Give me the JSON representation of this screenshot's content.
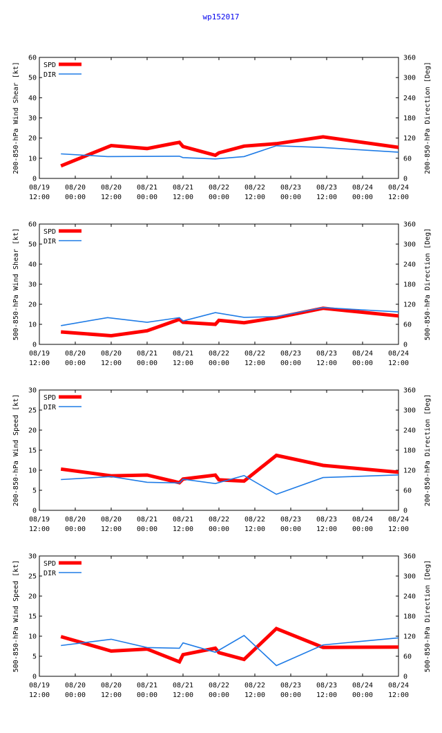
{
  "page_title": "wp152017",
  "colors": {
    "spd": "#ff0000",
    "dir": "#1e7be6",
    "title": "#0000ee",
    "axis": "#000000"
  },
  "chart_data": [
    {
      "type": "line",
      "ylabel": "200-850-hPa Wind Shear [kt]",
      "y2label": "200-850-hPa Direction [Deg]",
      "ylim": [
        0,
        60
      ],
      "yticks": [
        "0",
        "10",
        "20",
        "30",
        "40",
        "50",
        "60"
      ],
      "y2lim": [
        0,
        360
      ],
      "y2ticks": [
        "0",
        "60",
        "120",
        "180",
        "240",
        "300",
        "360"
      ],
      "xlim": [
        0,
        5
      ],
      "xticks": [
        {
          "date": "08/19",
          "time": "12:00"
        },
        {
          "date": "08/20",
          "time": "00:00"
        },
        {
          "date": "08/20",
          "time": "12:00"
        },
        {
          "date": "08/21",
          "time": "00:00"
        },
        {
          "date": "08/21",
          "time": "12:00"
        },
        {
          "date": "08/22",
          "time": "00:00"
        },
        {
          "date": "08/22",
          "time": "12:00"
        },
        {
          "date": "08/23",
          "time": "00:00"
        },
        {
          "date": "08/23",
          "time": "12:00"
        },
        {
          "date": "08/24",
          "time": "00:00"
        },
        {
          "date": "08/24",
          "time": "12:00"
        }
      ],
      "series": [
        {
          "name": "SPD",
          "axis": "left",
          "x": [
            0.3,
            1.0,
            1.5,
            1.95,
            2.0,
            2.45,
            2.5,
            2.85,
            3.3,
            3.95,
            5.0
          ],
          "y": [
            6.2,
            16.3,
            14.8,
            17.9,
            15.8,
            11.5,
            12.7,
            16.0,
            17.2,
            20.6,
            15.4
          ]
        },
        {
          "name": "DIR",
          "axis": "right",
          "x": [
            0.3,
            0.95,
            1.95,
            2.0,
            2.45,
            2.85,
            3.3,
            3.95,
            5.0
          ],
          "y": [
            73,
            65,
            66,
            62,
            58,
            65,
            97,
            92,
            78
          ]
        }
      ]
    },
    {
      "type": "line",
      "ylabel": "500-850-hPa Wind Shear [kt]",
      "y2label": "500-850-hPa Direction [Deg]",
      "ylim": [
        0,
        60
      ],
      "yticks": [
        "0",
        "10",
        "20",
        "30",
        "40",
        "50",
        "60"
      ],
      "y2lim": [
        0,
        360
      ],
      "y2ticks": [
        "0",
        "60",
        "120",
        "180",
        "240",
        "300",
        "360"
      ],
      "xlim": [
        0,
        5
      ],
      "xticks": [
        {
          "date": "08/19",
          "time": "12:00"
        },
        {
          "date": "08/20",
          "time": "00:00"
        },
        {
          "date": "08/20",
          "time": "12:00"
        },
        {
          "date": "08/21",
          "time": "00:00"
        },
        {
          "date": "08/21",
          "time": "12:00"
        },
        {
          "date": "08/22",
          "time": "00:00"
        },
        {
          "date": "08/22",
          "time": "12:00"
        },
        {
          "date": "08/23",
          "time": "00:00"
        },
        {
          "date": "08/23",
          "time": "12:00"
        },
        {
          "date": "08/24",
          "time": "00:00"
        },
        {
          "date": "08/24",
          "time": "12:00"
        }
      ],
      "series": [
        {
          "name": "SPD",
          "axis": "left",
          "x": [
            0.3,
            1.0,
            1.5,
            1.95,
            2.0,
            2.45,
            2.5,
            2.85,
            3.3,
            3.95,
            5.0
          ],
          "y": [
            6.2,
            4.3,
            6.8,
            12.5,
            11.0,
            10.0,
            12.0,
            10.8,
            13.3,
            18.0,
            14.2
          ]
        },
        {
          "name": "DIR",
          "axis": "right",
          "x": [
            0.3,
            0.95,
            1.5,
            1.95,
            2.0,
            2.45,
            2.85,
            3.3,
            3.95,
            5.0
          ],
          "y": [
            56,
            80,
            66,
            80,
            70,
            95,
            81,
            83,
            110,
            97
          ]
        }
      ]
    },
    {
      "type": "line",
      "ylabel": "200-850-hPa Wind Speed [kt]",
      "y2label": "200-850-hPa Direction [Deg]",
      "ylim": [
        0,
        30
      ],
      "yticks": [
        "0",
        "5",
        "10",
        "15",
        "20",
        "25",
        "30"
      ],
      "y2lim": [
        0,
        360
      ],
      "y2ticks": [
        "0",
        "60",
        "120",
        "180",
        "240",
        "300",
        "360"
      ],
      "xlim": [
        0,
        5
      ],
      "xticks": [
        {
          "date": "08/19",
          "time": "12:00"
        },
        {
          "date": "08/20",
          "time": "00:00"
        },
        {
          "date": "08/20",
          "time": "12:00"
        },
        {
          "date": "08/21",
          "time": "00:00"
        },
        {
          "date": "08/21",
          "time": "12:00"
        },
        {
          "date": "08/22",
          "time": "00:00"
        },
        {
          "date": "08/22",
          "time": "12:00"
        },
        {
          "date": "08/23",
          "time": "00:00"
        },
        {
          "date": "08/23",
          "time": "12:00"
        },
        {
          "date": "08/24",
          "time": "00:00"
        },
        {
          "date": "08/24",
          "time": "12:00"
        }
      ],
      "series": [
        {
          "name": "SPD",
          "axis": "left",
          "x": [
            0.3,
            1.0,
            1.5,
            1.95,
            2.0,
            2.45,
            2.5,
            2.85,
            3.3,
            3.95,
            5.0
          ],
          "y": [
            10.3,
            8.6,
            8.8,
            6.9,
            7.8,
            8.8,
            7.6,
            7.3,
            13.7,
            11.2,
            9.5
          ]
        },
        {
          "name": "DIR",
          "axis": "right",
          "x": [
            0.3,
            1.0,
            1.5,
            1.95,
            2.0,
            2.45,
            2.85,
            3.3,
            3.95,
            5.0
          ],
          "y": [
            92,
            101,
            84,
            82,
            93,
            80,
            104,
            48,
            98,
            106
          ]
        }
      ]
    },
    {
      "type": "line",
      "ylabel": "500-850-hPa Wind Speed [kt]",
      "y2label": "500-850-hPa Direction [Deg]",
      "ylim": [
        0,
        30
      ],
      "yticks": [
        "0",
        "5",
        "10",
        "15",
        "20",
        "25",
        "30"
      ],
      "y2lim": [
        0,
        360
      ],
      "y2ticks": [
        "0",
        "60",
        "120",
        "180",
        "240",
        "300",
        "360"
      ],
      "xlim": [
        0,
        5
      ],
      "xticks": [
        {
          "date": "08/19",
          "time": "12:00"
        },
        {
          "date": "08/20",
          "time": "00:00"
        },
        {
          "date": "08/20",
          "time": "12:00"
        },
        {
          "date": "08/21",
          "time": "00:00"
        },
        {
          "date": "08/21",
          "time": "12:00"
        },
        {
          "date": "08/22",
          "time": "00:00"
        },
        {
          "date": "08/22",
          "time": "12:00"
        },
        {
          "date": "08/23",
          "time": "00:00"
        },
        {
          "date": "08/23",
          "time": "12:00"
        },
        {
          "date": "08/24",
          "time": "00:00"
        },
        {
          "date": "08/24",
          "time": "12:00"
        }
      ],
      "series": [
        {
          "name": "SPD",
          "axis": "left",
          "x": [
            0.3,
            1.0,
            1.5,
            1.95,
            2.0,
            2.45,
            2.5,
            2.85,
            3.3,
            3.95,
            5.0
          ],
          "y": [
            9.9,
            6.3,
            6.8,
            3.6,
            5.4,
            7.0,
            5.9,
            4.2,
            11.9,
            7.2,
            7.3
          ]
        },
        {
          "name": "DIR",
          "axis": "right",
          "x": [
            0.3,
            1.0,
            1.5,
            1.95,
            2.0,
            2.45,
            2.85,
            3.3,
            3.95,
            5.0
          ],
          "y": [
            92,
            111,
            86,
            84,
            100,
            72,
            122,
            32,
            94,
            115
          ]
        }
      ]
    }
  ]
}
